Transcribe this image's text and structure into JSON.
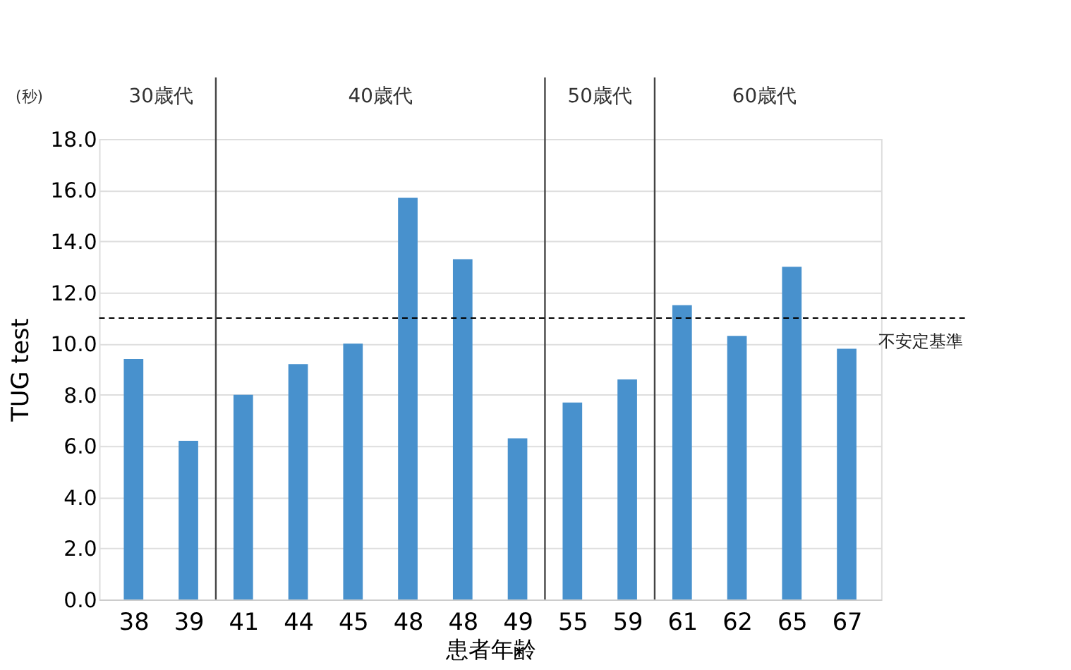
{
  "chart_data": {
    "type": "bar",
    "xlabel": "患者年齢",
    "ylabel": "TUG test",
    "categories": [
      "38",
      "39",
      "41",
      "44",
      "45",
      "48",
      "48",
      "49",
      "55",
      "59",
      "61",
      "62",
      "65",
      "67"
    ],
    "values": [
      9.4,
      6.2,
      8.0,
      9.2,
      10.0,
      15.7,
      13.3,
      6.3,
      7.7,
      8.6,
      11.5,
      10.3,
      13.0,
      9.8
    ],
    "color": "#3f8ccb",
    "ylim": [
      0,
      18
    ],
    "yticks": [
      {
        "value": 0,
        "label": "0.0"
      },
      {
        "value": 2,
        "label": "2.0"
      },
      {
        "value": 4,
        "label": "4.0"
      },
      {
        "value": 6,
        "label": "6.0"
      },
      {
        "value": 8,
        "label": "8.0"
      },
      {
        "value": 10,
        "label": "10.0"
      },
      {
        "value": 12,
        "label": "12.0"
      },
      {
        "value": 14,
        "label": "14.0"
      },
      {
        "value": 16,
        "label": "16.0"
      },
      {
        "value": 18,
        "label": "18.0"
      }
    ],
    "grid": "y",
    "ref_lines": [
      {
        "axis": "y",
        "value": 11.0,
        "label": "不安定基準",
        "line_style": "dashed",
        "color": "#000000"
      }
    ],
    "bands": [
      {
        "axis": "x",
        "from": "38",
        "to": "39",
        "label": "30歳代"
      },
      {
        "axis": "x",
        "from": "41",
        "to": "49",
        "label": "40歳代"
      },
      {
        "axis": "x",
        "from": "55",
        "to": "59",
        "label": "50歳代"
      },
      {
        "axis": "x",
        "from": "61",
        "to": "67",
        "label": "60歳代"
      }
    ],
    "annotations": [
      "(秒)"
    ]
  }
}
